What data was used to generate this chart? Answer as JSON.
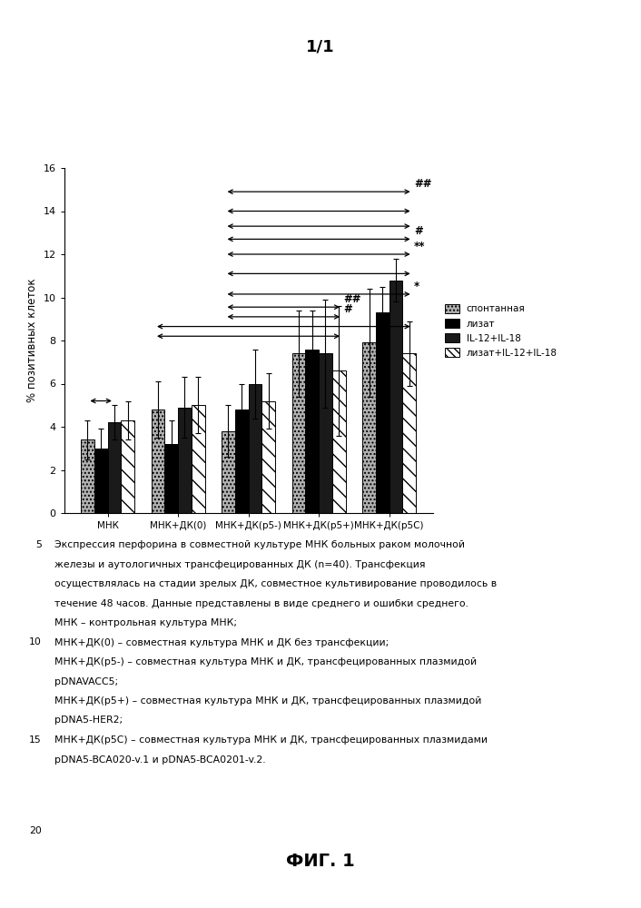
{
  "title": "1/1",
  "ylabel": "% позитивных клеток",
  "groups": [
    "МНК",
    "МНК+ДК(0)",
    "МНК+ДК(р5-)",
    "МНК+ДК(р5+)",
    "МНК+ДК(р5С)"
  ],
  "series_labels": [
    "спонтанная",
    "лизат",
    "IL-12+IL-18",
    "лизат+IL-12+IL-18"
  ],
  "bar_values": [
    [
      3.4,
      3.0,
      4.2,
      4.3
    ],
    [
      4.8,
      3.2,
      4.9,
      5.0
    ],
    [
      3.8,
      4.8,
      6.0,
      5.2
    ],
    [
      7.4,
      7.6,
      7.4,
      6.6
    ],
    [
      7.9,
      9.3,
      10.8,
      7.4
    ]
  ],
  "bar_errors": [
    [
      0.9,
      0.9,
      0.8,
      0.9
    ],
    [
      1.3,
      1.1,
      1.4,
      1.3
    ],
    [
      1.2,
      1.2,
      1.6,
      1.3
    ],
    [
      2.0,
      1.8,
      2.5,
      3.0
    ],
    [
      2.5,
      1.2,
      1.0,
      1.5
    ]
  ],
  "bar_colors": [
    "#b0b0b0",
    "#000000",
    "#1a1a1a",
    "#ffffff"
  ],
  "ylim": [
    0,
    16
  ],
  "yticks": [
    0,
    2,
    4,
    6,
    8,
    10,
    12,
    14,
    16
  ],
  "fig_title": "ФИГ. 1",
  "caption_lines": [
    "Экспрессия перфорина в совместной культуре МНК больных раком молочной",
    "железы и аутологичных трансфецированных ДК (n=40). Трансфекция",
    "осуществлялась на стадии зрелых ДК, совместное культивирование проводилось в",
    "течение 48 часов. Данные представлены в виде среднего и ошибки среднего.",
    "МНК – контрольная культура МНК;",
    "МНК+ДК(0) – совместная культура МНК и ДК без трансфекции;",
    "МНК+ДК(р5-) – совместная культура МНК и ДК, трансфецированных плазмидой",
    "pDNAVACC5;",
    "МНК+ДК(р5+) – совместная культура МНК и ДК, трансфецированных плазмидой",
    "pDNA5-HER2;",
    "МНК+ДК(р5С) – совместная культура МНК и ДК, трансфецированных плазмидами",
    "pDNA5-BCA020-v.1 и pDNA5-BCA0201-v.2."
  ],
  "line_num_map": {
    "0": "5",
    "5": "10",
    "10": "15"
  }
}
